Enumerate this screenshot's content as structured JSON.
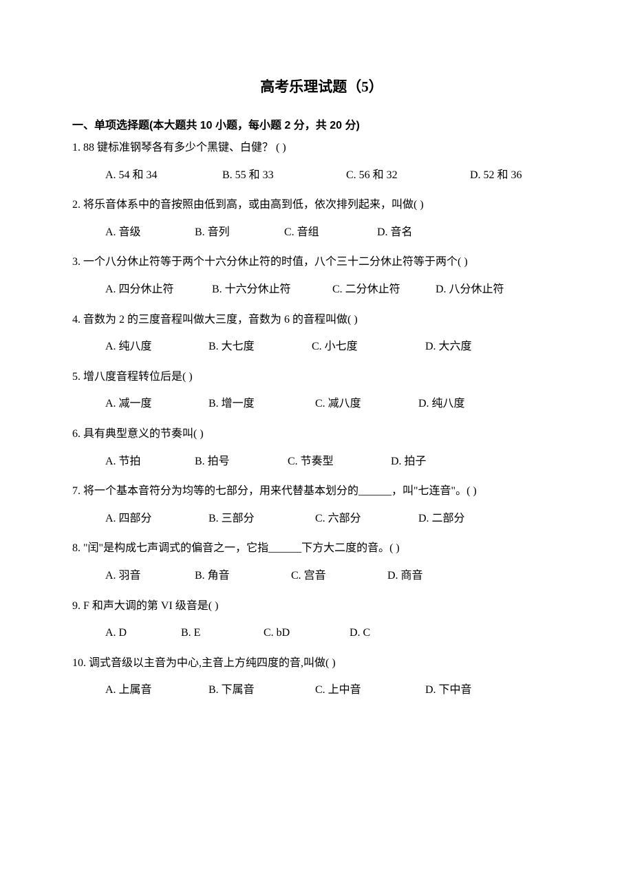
{
  "title": "高考乐理试题（5）",
  "section_header": "一、单项选择题(本大题共 10 小题，每小题 2 分，共 20 分)",
  "questions": [
    {
      "stem": "1. 88 键标准钢琴各有多少个黑键、白健？ (         )",
      "options": [
        "A. 54 和 34",
        "B. 55 和 33",
        "C. 56 和 32",
        "D. 52 和 36"
      ],
      "widths": [
        170,
        180,
        180,
        140
      ]
    },
    {
      "stem": "2. 将乐音体系中的音按照由低到高，或由高到低，依次排列起来，叫做(         )",
      "options": [
        "A. 音级",
        "B. 音列",
        "C. 音组",
        "D. 音名"
      ],
      "widths": [
        130,
        130,
        135,
        100
      ]
    },
    {
      "stem": "3. 一个八分休止符等于两个十六分休止符的时值，八个三十二分休止符等于两个(         )",
      "options": [
        "A. 四分休止符",
        "B. 十六分休止符",
        "C. 二分休止符",
        "D. 八分休止符"
      ],
      "widths": [
        155,
        175,
        150,
        140
      ]
    },
    {
      "stem": "4. 音数为 2 的三度音程叫做大三度，音数为 6 的音程叫做(         )",
      "options": [
        "A. 纯八度",
        "B. 大七度",
        "C. 小七度",
        "D. 大六度"
      ],
      "widths": [
        150,
        150,
        165,
        120
      ]
    },
    {
      "stem": "5. 增八度音程转位后是(         )",
      "options": [
        "A. 减一度",
        "B. 增一度",
        "C. 减八度",
        "D. 纯八度"
      ],
      "widths": [
        150,
        155,
        150,
        120
      ]
    },
    {
      "stem": "6. 具有典型意义的节奏叫(         )",
      "options": [
        "A. 节拍",
        "B. 拍号",
        "C. 节奏型",
        "D. 拍子"
      ],
      "widths": [
        130,
        135,
        150,
        100
      ]
    },
    {
      "stem": "7. 将一个基本音符分为均等的七部分，用来代替基本划分的______，叫\"七连音\"。(         )",
      "options": [
        "A. 四部分",
        "B. 三部分",
        "C. 六部分",
        "D. 二部分"
      ],
      "widths": [
        150,
        155,
        150,
        120
      ]
    },
    {
      "stem": "8. \"闰\"是构成七声调式的偏音之一，它指______下方大二度的音。(         )",
      "options": [
        "A. 羽音",
        "B. 角音",
        "C. 宫音",
        "D. 商音"
      ],
      "widths": [
        130,
        140,
        140,
        100
      ]
    },
    {
      "stem": "9. F 和声大调的第 VI 级音是(          )",
      "options": [
        "A. D",
        "B. E",
        "C. bD",
        "D. C"
      ],
      "widths": [
        110,
        120,
        125,
        80
      ]
    },
    {
      "stem": "10. 调式音级以主音为中心,主音上方纯四度的音,叫做(         )",
      "options": [
        "A. 上属音",
        "B. 下属音",
        "C. 上中音",
        "D. 下中音"
      ],
      "widths": [
        150,
        155,
        160,
        120
      ]
    }
  ]
}
